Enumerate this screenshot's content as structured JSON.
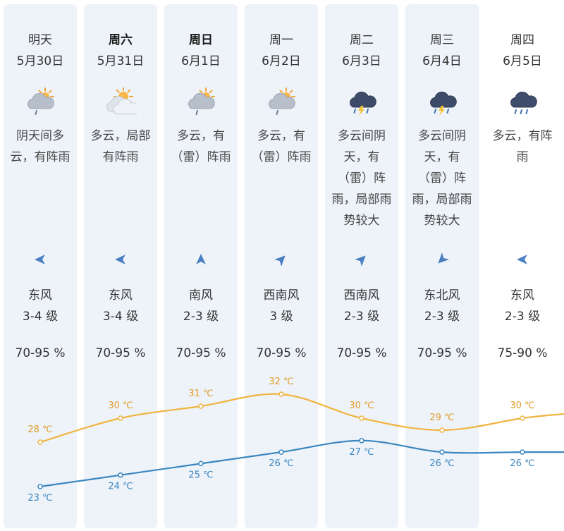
{
  "days": [
    {
      "name": "明天",
      "bold": false,
      "date": "5月30日",
      "icon": "cloudy-sun-rain-icon",
      "desc": [
        "阴天间多",
        "云，有阵雨"
      ],
      "wind_dir": "arrow-left-icon",
      "wind_name": "东风",
      "wind_level": "3-4 级",
      "humidity": "70-95 %",
      "high": "28 ℃",
      "low": "23 ℃"
    },
    {
      "name": "周六",
      "bold": true,
      "date": "5月31日",
      "icon": "partly-cloudy-icon",
      "desc": [
        "多云，局部",
        "有阵雨"
      ],
      "wind_dir": "arrow-left-icon",
      "wind_name": "东风",
      "wind_level": "3-4 级",
      "humidity": "70-95 %",
      "high": "30 ℃",
      "low": "24 ℃"
    },
    {
      "name": "周日",
      "bold": true,
      "date": "6月1日",
      "icon": "cloudy-sun-rain-icon",
      "desc": [
        "多云，有",
        "（雷）阵雨"
      ],
      "wind_dir": "arrow-up-icon",
      "wind_name": "南风",
      "wind_level": "2-3 级",
      "humidity": "70-95 %",
      "high": "31 ℃",
      "low": "25 ℃"
    },
    {
      "name": "周一",
      "bold": false,
      "date": "6月2日",
      "icon": "cloudy-sun-rain-icon",
      "desc": [
        "多云，有",
        "（雷）阵雨"
      ],
      "wind_dir": "arrow-up-right-icon",
      "wind_name": "西南风",
      "wind_level": "3 级",
      "humidity": "70-95 %",
      "high": "32 ℃",
      "low": "26 ℃"
    },
    {
      "name": "周二",
      "bold": false,
      "date": "6月3日",
      "icon": "thunderstorm-icon",
      "desc": [
        "多云间阴",
        "天，有",
        "（雷）阵",
        "雨，局部雨",
        "势较大"
      ],
      "wind_dir": "arrow-up-right-icon",
      "wind_name": "西南风",
      "wind_level": "2-3 级",
      "humidity": "70-95 %",
      "high": "30 ℃",
      "low": "27 ℃"
    },
    {
      "name": "周三",
      "bold": false,
      "date": "6月4日",
      "icon": "thunderstorm-icon",
      "desc": [
        "多云间阴",
        "天，有",
        "（雷）阵",
        "雨，局部雨",
        "势较大"
      ],
      "wind_dir": "arrow-down-left-icon",
      "wind_name": "东北风",
      "wind_level": "2-3 级",
      "humidity": "70-95 %",
      "high": "29 ℃",
      "low": "26 ℃"
    },
    {
      "name": "周四",
      "bold": false,
      "date": "6月5日",
      "icon": "dark-cloud-rain-icon",
      "desc": [
        "多云，有阵",
        "雨"
      ],
      "wind_dir": "arrow-left-icon",
      "wind_name": "东风",
      "wind_level": "2-3 级",
      "humidity": "75-90 %",
      "high": "30 ℃",
      "low": "26 ℃"
    }
  ],
  "chart_data": {
    "type": "line",
    "categories": [
      "5月30日",
      "5月31日",
      "6月1日",
      "6月2日",
      "6月3日",
      "6月4日",
      "6月5日"
    ],
    "series": [
      {
        "values": [
          28,
          30,
          31,
          32,
          30,
          29,
          30
        ],
        "color": "#f0b440"
      },
      {
        "values": [
          23,
          24,
          25,
          26,
          27,
          26,
          26
        ],
        "color": "#3a87c0"
      }
    ],
    "unit": "℃"
  },
  "colors": {
    "high_line": "#f0b440",
    "low_line": "#3a87c0",
    "high_text": "#e09c2a",
    "low_text": "#3a87c0",
    "column_bg": "#eef3f9",
    "wind_arrow": "#4a7fc1"
  }
}
